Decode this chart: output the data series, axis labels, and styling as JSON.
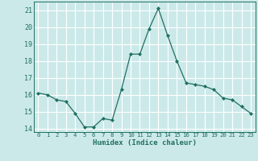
{
  "x": [
    0,
    1,
    2,
    3,
    4,
    5,
    6,
    7,
    8,
    9,
    10,
    11,
    12,
    13,
    14,
    15,
    16,
    17,
    18,
    19,
    20,
    21,
    22,
    23
  ],
  "y": [
    16.1,
    16.0,
    15.7,
    15.6,
    14.9,
    14.1,
    14.1,
    14.6,
    14.5,
    16.3,
    18.4,
    18.4,
    19.9,
    21.1,
    19.5,
    18.0,
    16.7,
    16.6,
    16.5,
    16.3,
    15.8,
    15.7,
    15.3,
    14.9
  ],
  "xlabel": "Humidex (Indice chaleur)",
  "xlim": [
    -0.5,
    23.5
  ],
  "ylim": [
    13.8,
    21.5
  ],
  "yticks": [
    14,
    15,
    16,
    17,
    18,
    19,
    20,
    21
  ],
  "xticks": [
    0,
    1,
    2,
    3,
    4,
    5,
    6,
    7,
    8,
    9,
    10,
    11,
    12,
    13,
    14,
    15,
    16,
    17,
    18,
    19,
    20,
    21,
    22,
    23
  ],
  "line_color": "#1f7060",
  "marker_color": "#1f7060",
  "bg_color": "#cce9e9",
  "grid_major_color": "#ffffff",
  "grid_minor_color": "#b8d8d8",
  "tick_color": "#1f7060",
  "label_color": "#1f7060"
}
